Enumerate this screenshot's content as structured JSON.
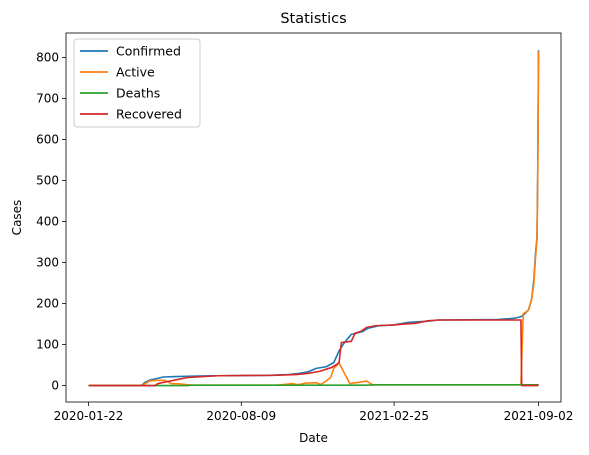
{
  "chart_data": {
    "type": "line",
    "title": "Statistics",
    "xlabel": "Date",
    "ylabel": "Cases",
    "x_start": "2020-01-22",
    "x_end": "2021-09-02",
    "xticks": [
      "2020-01-22",
      "2020-08-09",
      "2021-02-25",
      "2021-09-02"
    ],
    "ylim": [
      -40,
      860
    ],
    "yticks": [
      0,
      100,
      200,
      300,
      400,
      500,
      600,
      700,
      800
    ],
    "legend": "top-left",
    "grid": false,
    "series": [
      {
        "name": "Confirmed",
        "color": "#1f77b4",
        "points": [
          [
            "2020-01-22",
            0
          ],
          [
            "2020-03-31",
            0
          ],
          [
            "2020-04-05",
            8
          ],
          [
            "2020-04-12",
            14
          ],
          [
            "2020-04-22",
            18
          ],
          [
            "2020-04-29",
            21
          ],
          [
            "2020-05-15",
            22
          ],
          [
            "2020-06-05",
            23
          ],
          [
            "2020-07-01",
            24
          ],
          [
            "2020-09-15",
            25
          ],
          [
            "2020-10-10",
            27
          ],
          [
            "2020-10-25",
            30
          ],
          [
            "2020-11-05",
            34
          ],
          [
            "2020-11-15",
            42
          ],
          [
            "2020-11-28",
            46
          ],
          [
            "2020-12-08",
            56
          ],
          [
            "2020-12-15",
            85
          ],
          [
            "2020-12-22",
            105
          ],
          [
            "2020-12-31",
            125
          ],
          [
            "2021-01-07",
            128
          ],
          [
            "2021-01-15",
            132
          ],
          [
            "2021-01-22",
            140
          ],
          [
            "2021-02-05",
            146
          ],
          [
            "2021-02-25",
            148
          ],
          [
            "2021-03-15",
            154
          ],
          [
            "2021-04-10",
            157
          ],
          [
            "2021-04-24",
            160
          ],
          [
            "2021-07-10",
            161
          ],
          [
            "2021-08-01",
            164
          ],
          [
            "2021-08-10",
            168
          ],
          [
            "2021-08-15",
            175
          ],
          [
            "2021-08-20",
            185
          ],
          [
            "2021-08-24",
            210
          ],
          [
            "2021-08-27",
            260
          ],
          [
            "2021-08-29",
            320
          ],
          [
            "2021-08-31",
            360
          ],
          [
            "2021-09-01",
            520
          ],
          [
            "2021-09-02",
            818
          ]
        ]
      },
      {
        "name": "Active",
        "color": "#ff7f0e",
        "points": [
          [
            "2020-01-22",
            0
          ],
          [
            "2020-03-31",
            0
          ],
          [
            "2020-04-05",
            5
          ],
          [
            "2020-04-12",
            12
          ],
          [
            "2020-04-22",
            13
          ],
          [
            "2020-05-01",
            13
          ],
          [
            "2020-05-09",
            5
          ],
          [
            "2020-05-20",
            4
          ],
          [
            "2020-06-05",
            1
          ],
          [
            "2020-09-25",
            1
          ],
          [
            "2020-10-05",
            3
          ],
          [
            "2020-10-15",
            5
          ],
          [
            "2020-10-22",
            2
          ],
          [
            "2020-11-01",
            6
          ],
          [
            "2020-11-15",
            7
          ],
          [
            "2020-11-21",
            3
          ],
          [
            "2020-11-27",
            10
          ],
          [
            "2020-12-04",
            20
          ],
          [
            "2020-12-08",
            42
          ],
          [
            "2020-12-15",
            55
          ],
          [
            "2020-12-22",
            30
          ],
          [
            "2020-12-29",
            5
          ],
          [
            "2021-01-10",
            8
          ],
          [
            "2021-01-20",
            11
          ],
          [
            "2021-01-28",
            2
          ],
          [
            "2021-08-10",
            2
          ],
          [
            "2021-08-13",
            175
          ],
          [
            "2021-08-17",
            180
          ],
          [
            "2021-08-20",
            185
          ],
          [
            "2021-08-24",
            210
          ],
          [
            "2021-08-27",
            250
          ],
          [
            "2021-08-29",
            310
          ],
          [
            "2021-08-31",
            355
          ],
          [
            "2021-09-01",
            510
          ],
          [
            "2021-09-02",
            815
          ]
        ]
      },
      {
        "name": "Deaths",
        "color": "#2ca02c",
        "points": [
          [
            "2020-01-22",
            0
          ],
          [
            "2020-06-01",
            0
          ],
          [
            "2020-06-02",
            1
          ],
          [
            "2021-01-20",
            1
          ],
          [
            "2021-02-01",
            2
          ],
          [
            "2021-09-02",
            2
          ]
        ]
      },
      {
        "name": "Recovered",
        "color": "#d62728",
        "points": [
          [
            "2020-01-22",
            0
          ],
          [
            "2020-04-18",
            0
          ],
          [
            "2020-04-22",
            5
          ],
          [
            "2020-05-05",
            10
          ],
          [
            "2020-05-18",
            15
          ],
          [
            "2020-06-01",
            20
          ],
          [
            "2020-06-20",
            22
          ],
          [
            "2020-07-10",
            24
          ],
          [
            "2020-09-20",
            25
          ],
          [
            "2020-10-20",
            27
          ],
          [
            "2020-11-05",
            30
          ],
          [
            "2020-11-20",
            35
          ],
          [
            "2020-11-28",
            40
          ],
          [
            "2020-12-05",
            44
          ],
          [
            "2020-12-12",
            52
          ],
          [
            "2020-12-15",
            56
          ],
          [
            "2020-12-18",
            105
          ],
          [
            "2020-12-31",
            108
          ],
          [
            "2021-01-05",
            128
          ],
          [
            "2021-01-12",
            132
          ],
          [
            "2021-01-20",
            142
          ],
          [
            "2021-02-01",
            146
          ],
          [
            "2021-02-25",
            148
          ],
          [
            "2021-03-10",
            150
          ],
          [
            "2021-03-25",
            152
          ],
          [
            "2021-04-10",
            158
          ],
          [
            "2021-04-24",
            160
          ],
          [
            "2021-08-10",
            160
          ],
          [
            "2021-08-11",
            0
          ],
          [
            "2021-09-01",
            0
          ],
          [
            "2021-09-02",
            3
          ]
        ]
      }
    ]
  }
}
